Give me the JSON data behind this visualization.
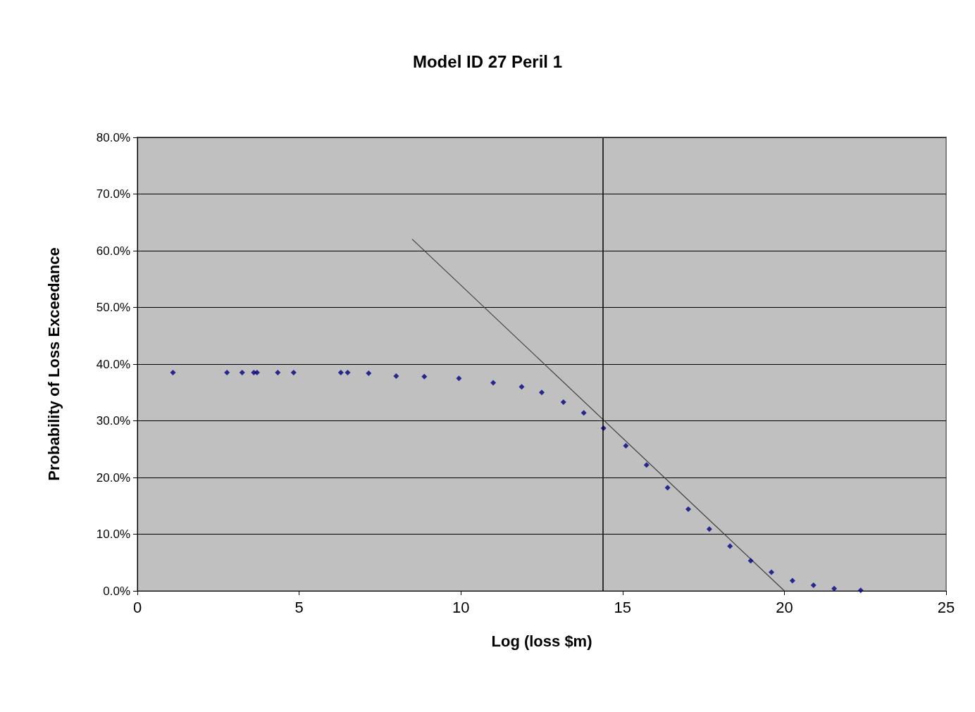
{
  "chart_data": {
    "type": "scatter",
    "title": "Model ID 27 Peril 1",
    "xlabel": "Log (loss $m)",
    "ylabel": "Probability of Loss Exceedance",
    "xlim": [
      0,
      25
    ],
    "xticks": [
      0,
      5,
      10,
      15,
      20,
      25
    ],
    "ylim": [
      0,
      80
    ],
    "yticks": [
      {
        "value": 0,
        "label": "0.0%"
      },
      {
        "value": 10,
        "label": "10.0%"
      },
      {
        "value": 20,
        "label": "20.0%"
      },
      {
        "value": 30,
        "label": "30.0%"
      },
      {
        "value": 40,
        "label": "40.0%"
      },
      {
        "value": 50,
        "label": "50.0%"
      },
      {
        "value": 60,
        "label": "60.0%"
      },
      {
        "value": 70,
        "label": "70.0%"
      },
      {
        "value": 80,
        "label": "80.0%"
      }
    ],
    "grid": "y",
    "marker": "diamond",
    "series": [
      {
        "color": "#000080",
        "x": [
          1.1,
          2.77,
          3.24,
          3.6,
          3.7,
          4.34,
          4.83,
          6.29,
          6.5,
          7.15,
          8.0,
          8.87,
          9.94,
          11.0,
          11.88,
          12.5,
          13.17,
          13.8,
          14.41,
          15.1,
          15.74,
          16.39,
          17.03,
          17.68,
          18.32,
          18.96,
          19.6,
          20.25,
          20.9,
          21.54,
          22.36
        ],
        "values": [
          38.5,
          38.5,
          38.5,
          38.5,
          38.5,
          38.5,
          38.5,
          38.5,
          38.5,
          38.4,
          37.9,
          37.8,
          37.5,
          36.7,
          36.0,
          35.0,
          33.3,
          31.4,
          28.7,
          25.6,
          22.2,
          18.2,
          14.4,
          10.9,
          7.9,
          5.3,
          3.3,
          1.8,
          1.0,
          0.4,
          0.1
        ]
      },
      {
        "type": "line",
        "color": "#404040",
        "marker": "none",
        "x": [
          8.5,
          20.0
        ],
        "values": [
          62,
          0
        ]
      }
    ],
    "ref_lines": [
      {
        "axis": "x",
        "value": 14.4,
        "color": "#000000"
      }
    ]
  }
}
